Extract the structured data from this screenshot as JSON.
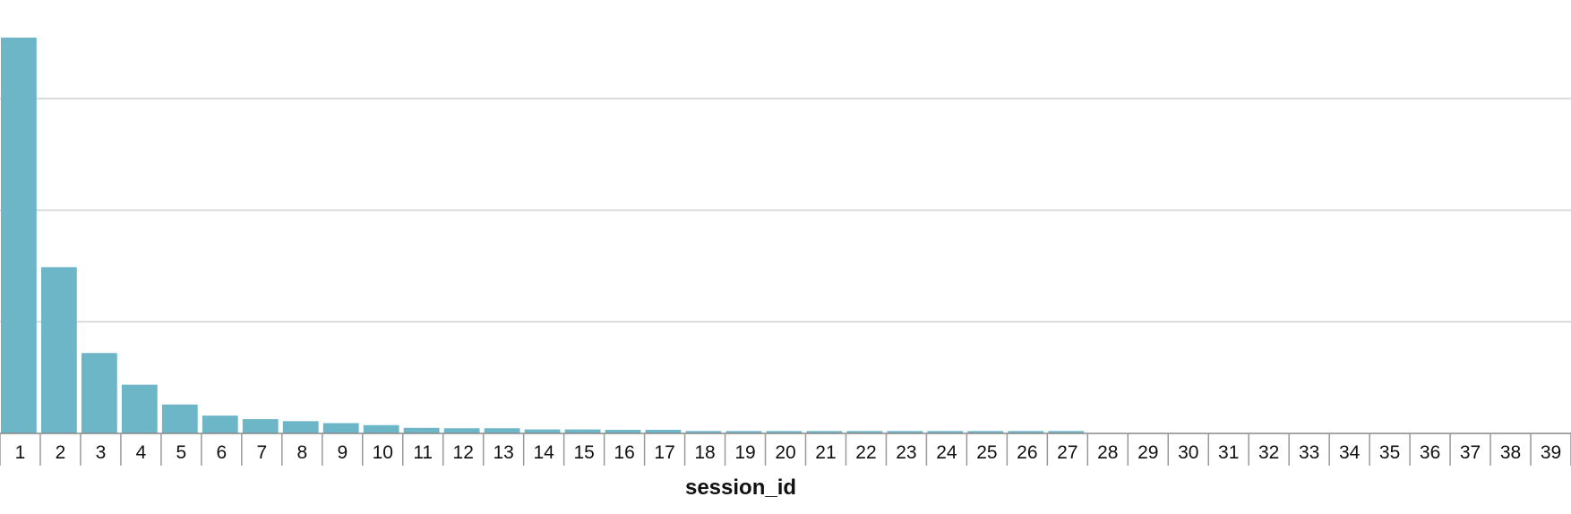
{
  "chart_data": {
    "type": "bar",
    "xlabel": "session_id",
    "ylabel": "",
    "ylim": [
      0,
      100
    ],
    "yticks": [
      0,
      28.2,
      56.4,
      84.6
    ],
    "ytick_labels_visible": false,
    "grid": true,
    "bar_color": "#6cb6c8",
    "categories": [
      "1",
      "2",
      "3",
      "4",
      "5",
      "6",
      "7",
      "8",
      "9",
      "10",
      "11",
      "12",
      "13",
      "14",
      "15",
      "16",
      "17",
      "18",
      "19",
      "20",
      "21",
      "22",
      "23",
      "24",
      "25",
      "26",
      "27",
      "28",
      "29",
      "30",
      "31",
      "32",
      "33",
      "34",
      "35",
      "36",
      "37",
      "38",
      "39"
    ],
    "values": [
      100,
      42,
      20.3,
      12.3,
      7.3,
      4.5,
      3.6,
      3.1,
      2.6,
      2.1,
      1.4,
      1.3,
      1.3,
      1.0,
      1.0,
      0.9,
      0.9,
      0.6,
      0.6,
      0.6,
      0.6,
      0.6,
      0.6,
      0.6,
      0.6,
      0.6,
      0.6,
      0,
      0,
      0,
      0,
      0,
      0,
      0,
      0,
      0,
      0,
      0,
      0
    ]
  }
}
